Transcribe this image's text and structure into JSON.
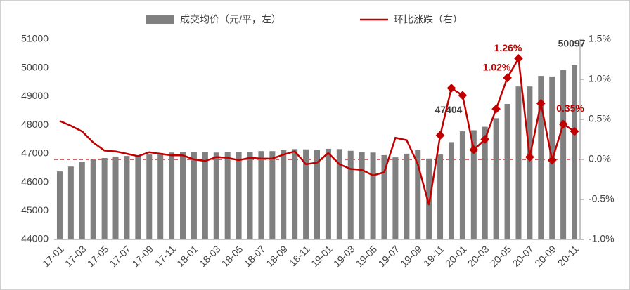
{
  "chart_data": {
    "type": "bar-line",
    "categories": [
      "17-01",
      null,
      "17-03",
      null,
      "17-05",
      null,
      "17-07",
      null,
      "17-09",
      null,
      "17-11",
      null,
      "18-01",
      null,
      "18-03",
      null,
      "18-05",
      null,
      "18-07",
      null,
      "18-09",
      null,
      "18-11",
      null,
      "19-01",
      null,
      "19-03",
      null,
      "19-05",
      null,
      "19-07",
      null,
      "19-09",
      null,
      "19-11",
      null,
      "20-01",
      null,
      "20-03",
      null,
      "20-05",
      null,
      "20-07",
      null,
      "20-09",
      null,
      "20-11"
    ],
    "series": [
      {
        "name": "成交均价（元/平，左）",
        "type": "bar",
        "color": "#808080",
        "values": [
          46380,
          46550,
          46720,
          46800,
          46850,
          46900,
          46920,
          46950,
          46970,
          47020,
          47040,
          47060,
          47070,
          47050,
          47040,
          47060,
          47060,
          47070,
          47090,
          47090,
          47120,
          47160,
          47150,
          47130,
          47170,
          47160,
          47100,
          47060,
          47040,
          46950,
          46870,
          47000,
          47120,
          46830,
          46970,
          47404,
          47780,
          47820,
          47940,
          48240,
          48740,
          49350,
          49350,
          49720,
          49700,
          49920,
          50097
        ],
        "value_labels": [
          null,
          null,
          null,
          null,
          null,
          null,
          null,
          null,
          null,
          null,
          null,
          null,
          null,
          null,
          null,
          null,
          null,
          null,
          null,
          null,
          null,
          null,
          null,
          null,
          null,
          null,
          null,
          null,
          null,
          null,
          null,
          null,
          null,
          null,
          null,
          "47404",
          null,
          null,
          null,
          null,
          null,
          null,
          null,
          null,
          null,
          null,
          "50097"
        ]
      },
      {
        "name": "环比涨跌（右）",
        "type": "line",
        "axis": "y2",
        "color": "#c00000",
        "values": [
          0.48,
          0.42,
          0.35,
          0.21,
          0.11,
          0.1,
          0.07,
          0.04,
          0.09,
          0.07,
          0.05,
          0.05,
          0,
          -0.02,
          0.03,
          0.02,
          -0.01,
          0.02,
          0.01,
          0.01,
          0.06,
          0.1,
          -0.06,
          -0.04,
          0.08,
          -0.06,
          -0.12,
          -0.13,
          -0.2,
          -0.16,
          0.27,
          0.24,
          -0.06,
          -0.57,
          0.3,
          0.89,
          0.8,
          0.12,
          0.25,
          0.63,
          1.02,
          1.26,
          0.03,
          0.7,
          -0.01,
          0.44,
          0.35
        ],
        "value_labels": [
          null,
          null,
          null,
          null,
          null,
          null,
          null,
          null,
          null,
          null,
          null,
          null,
          null,
          null,
          null,
          null,
          null,
          null,
          null,
          null,
          null,
          null,
          null,
          null,
          null,
          null,
          null,
          null,
          null,
          null,
          null,
          null,
          null,
          null,
          null,
          null,
          null,
          null,
          null,
          null,
          "1.02%",
          "1.26%",
          null,
          null,
          null,
          null,
          "0.35%"
        ]
      }
    ],
    "ylim": [
      44000,
      51000
    ],
    "yticks": [
      44000,
      45000,
      46000,
      47000,
      48000,
      49000,
      50000,
      51000
    ],
    "y2lim": [
      -1.0,
      1.5
    ],
    "y2ticks": [
      {
        "value": -1.0,
        "label": "-1.0%"
      },
      {
        "value": -0.5,
        "label": "-0.5%"
      },
      {
        "value": 0,
        "label": "0.0%"
      },
      {
        "value": 0.5,
        "label": "0.5%"
      },
      {
        "value": 1.0,
        "label": "1.0%"
      },
      {
        "value": 1.5,
        "label": "1.5%"
      }
    ],
    "legend": "top"
  }
}
